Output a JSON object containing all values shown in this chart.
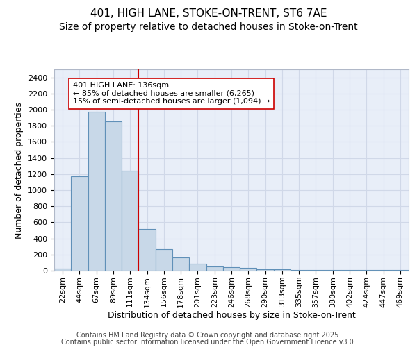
{
  "title1": "401, HIGH LANE, STOKE-ON-TRENT, ST6 7AE",
  "title2": "Size of property relative to detached houses in Stoke-on-Trent",
  "xlabel": "Distribution of detached houses by size in Stoke-on-Trent",
  "ylabel": "Number of detached properties",
  "categories": [
    "22sqm",
    "44sqm",
    "67sqm",
    "89sqm",
    "111sqm",
    "134sqm",
    "156sqm",
    "178sqm",
    "201sqm",
    "223sqm",
    "246sqm",
    "268sqm",
    "290sqm",
    "313sqm",
    "335sqm",
    "357sqm",
    "380sqm",
    "402sqm",
    "424sqm",
    "447sqm",
    "469sqm"
  ],
  "values": [
    30,
    1170,
    1970,
    1850,
    1240,
    520,
    270,
    160,
    90,
    50,
    45,
    35,
    20,
    15,
    5,
    5,
    5,
    5,
    5,
    5,
    5
  ],
  "bar_color": "#c8d8e8",
  "bar_edge_color": "#6090b8",
  "bar_width": 1.0,
  "vline_index": 4.5,
  "vline_color": "#cc0000",
  "annotation_text": "401 HIGH LANE: 136sqm\n← 85% of detached houses are smaller (6,265)\n15% of semi-detached houses are larger (1,094) →",
  "annotation_box_color": "#ffffff",
  "annotation_box_edge_color": "#cc0000",
  "ylim": [
    0,
    2500
  ],
  "yticks": [
    0,
    200,
    400,
    600,
    800,
    1000,
    1200,
    1400,
    1600,
    1800,
    2000,
    2200,
    2400
  ],
  "grid_color": "#d0d8e8",
  "background_color": "#e8eef8",
  "footer1": "Contains HM Land Registry data © Crown copyright and database right 2025.",
  "footer2": "Contains public sector information licensed under the Open Government Licence v3.0.",
  "title1_fontsize": 11,
  "title2_fontsize": 10,
  "axis_label_fontsize": 9,
  "tick_fontsize": 8,
  "annotation_fontsize": 8,
  "footer_fontsize": 7
}
